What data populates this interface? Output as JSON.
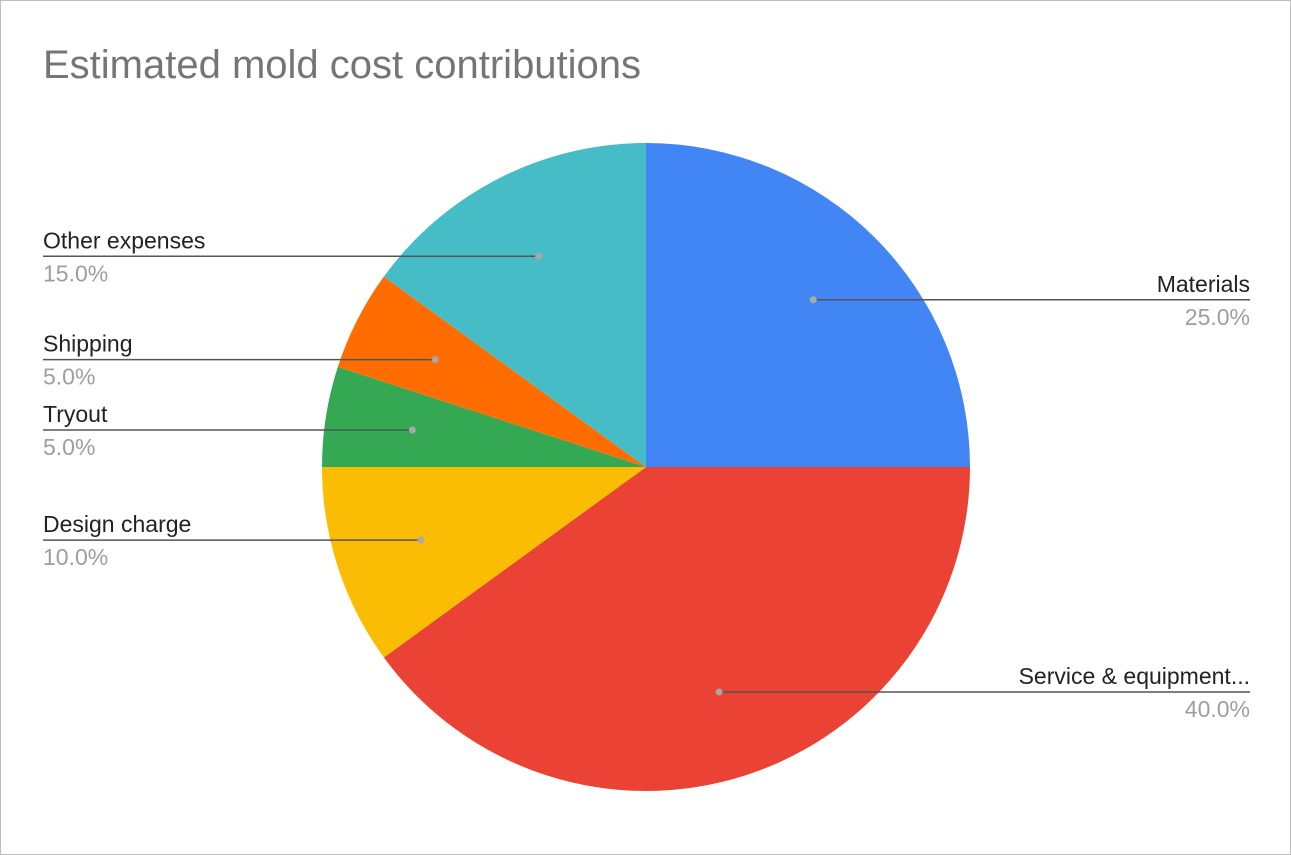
{
  "chart_data": {
    "type": "pie",
    "title": "Estimated mold cost contributions",
    "slices": [
      {
        "label": "Materials",
        "value": 25.0,
        "pct_label": "25.0%",
        "color": "#4285f4"
      },
      {
        "label": "Service & equipment...",
        "value": 40.0,
        "pct_label": "40.0%",
        "color": "#ea4335"
      },
      {
        "label": "Design charge",
        "value": 10.0,
        "pct_label": "10.0%",
        "color": "#fbbc04"
      },
      {
        "label": "Tryout",
        "value": 5.0,
        "pct_label": "5.0%",
        "color": "#34a853"
      },
      {
        "label": "Shipping",
        "value": 5.0,
        "pct_label": "5.0%",
        "color": "#ff6d01"
      },
      {
        "label": "Other expenses",
        "value": 15.0,
        "pct_label": "15.0%",
        "color": "#46bdc6"
      }
    ],
    "start_angle": "12 o'clock",
    "direction": "clockwise",
    "legend": "labeled"
  }
}
